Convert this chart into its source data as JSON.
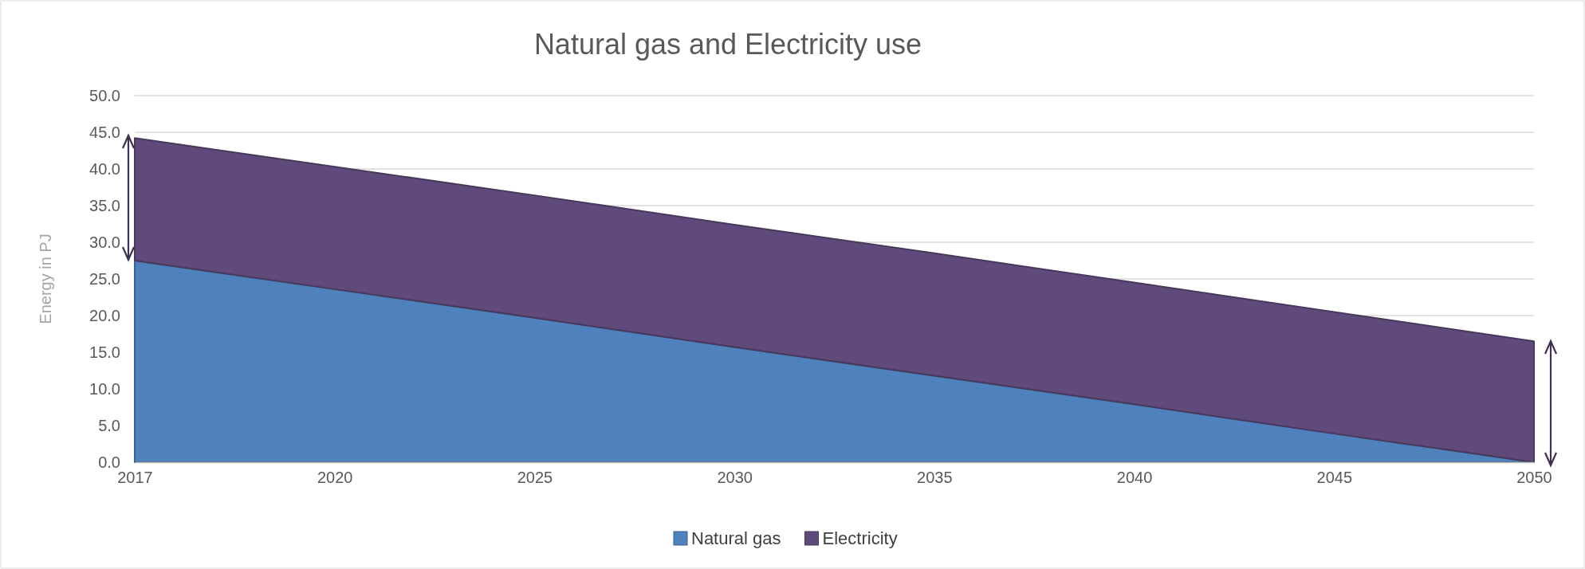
{
  "chart_data": {
    "type": "area",
    "title": "Natural gas and Electricity use",
    "ylabel": "Energy in PJ",
    "categories": [
      "2017",
      "2020",
      "2025",
      "2030",
      "2035",
      "2040",
      "2045",
      "2050"
    ],
    "stacked": true,
    "series": [
      {
        "name": "Natural gas",
        "color": "#4f81bd",
        "values": [
          27.5,
          23.6,
          19.7,
          15.7,
          11.8,
          7.9,
          3.9,
          0
        ]
      },
      {
        "name": "Electricity",
        "color": "#604a7b",
        "values": [
          16.7,
          16.7,
          16.7,
          16.7,
          16.7,
          16.6,
          16.6,
          16.5
        ]
      }
    ],
    "ylim": [
      0,
      50
    ],
    "yticks": [
      {
        "value": 0,
        "label": "0.0"
      },
      {
        "value": 5,
        "label": "5.0"
      },
      {
        "value": 10,
        "label": "10.0"
      },
      {
        "value": 15,
        "label": "15.0"
      },
      {
        "value": 20,
        "label": "20.0"
      },
      {
        "value": 25,
        "label": "25.0"
      },
      {
        "value": 30,
        "label": "30.0"
      },
      {
        "value": 35,
        "label": "35.0"
      },
      {
        "value": 40,
        "label": "40.0"
      },
      {
        "value": 45,
        "label": "45.0"
      },
      {
        "value": 50,
        "label": "50.0"
      }
    ],
    "grid": "y",
    "legend": "bottom"
  }
}
